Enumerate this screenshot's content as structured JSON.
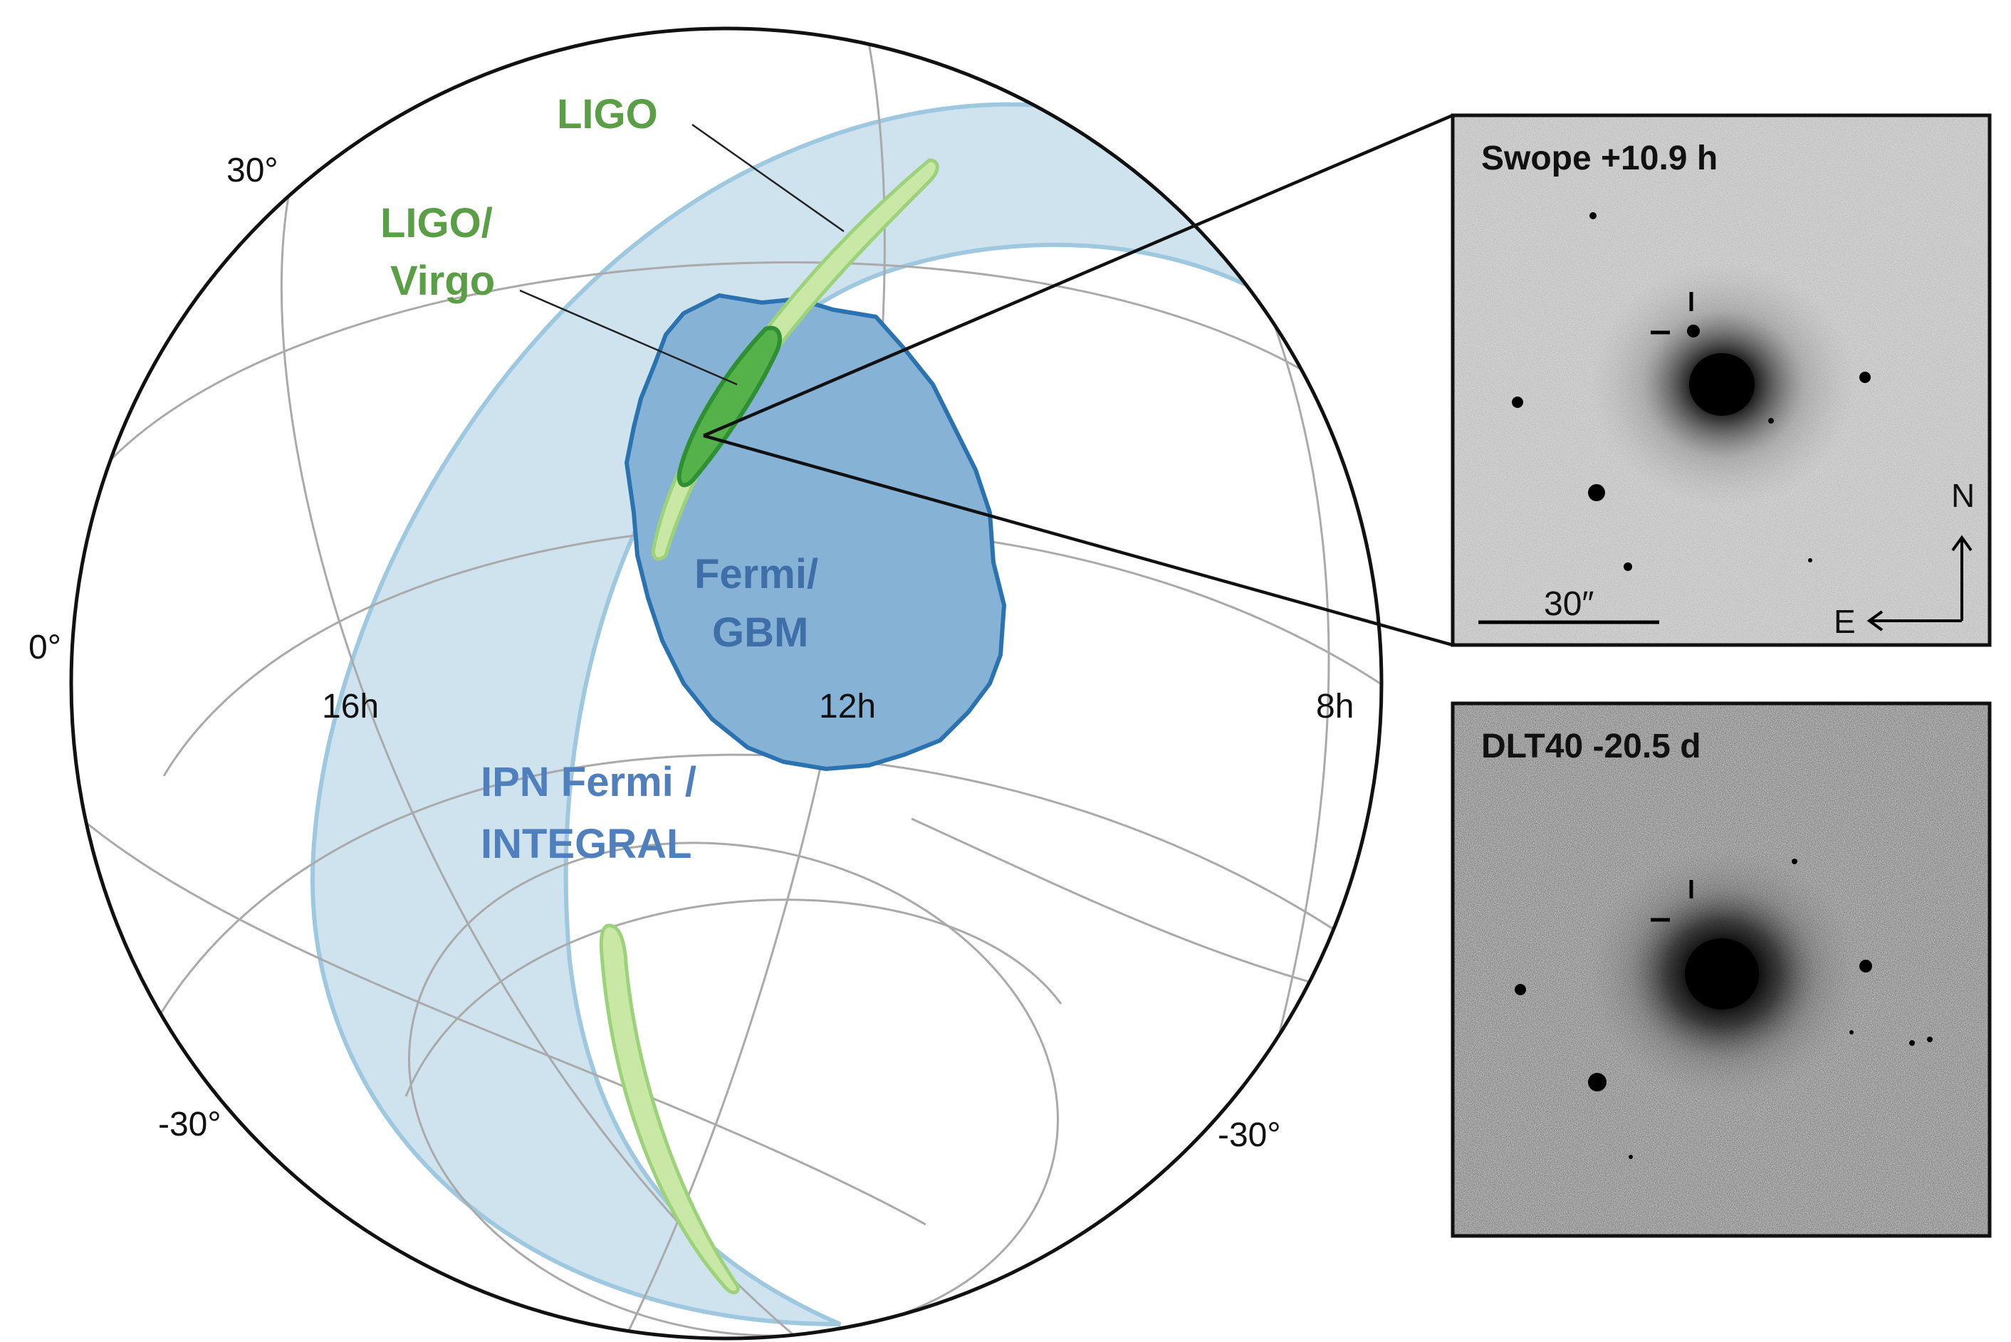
{
  "sky_map": {
    "labels": {
      "ligo": "LIGO",
      "ligo_virgo_line1": "LIGO/",
      "ligo_virgo_line2": "Virgo",
      "fermi_gbm_line1": "Fermi/",
      "fermi_gbm_line2": "GBM",
      "ipn_line1": "IPN Fermi /",
      "ipn_line2": "INTEGRAL"
    },
    "dec_labels": [
      "30°",
      "0°",
      "-30°",
      "-30°"
    ],
    "ra_labels": [
      "16h",
      "12h",
      "8h"
    ],
    "colors": {
      "ipn_band": "#cfe3ef",
      "ipn_edge": "#9ec8df",
      "gbm_fill": "#86b2d6",
      "gbm_edge": "#2a73b0",
      "ligo_fill": "#c9e8a6",
      "ligo_edge": "#9bd27a",
      "virgo_fill": "#55b24a",
      "virgo_edge": "#2f8f33",
      "grid": "#aaaaaa"
    }
  },
  "panels": {
    "swope": {
      "title": "Swope +10.9 h",
      "scale_label": "30″",
      "north": "N",
      "east": "E"
    },
    "dlt40": {
      "title": "DLT40 -20.5 d"
    }
  }
}
